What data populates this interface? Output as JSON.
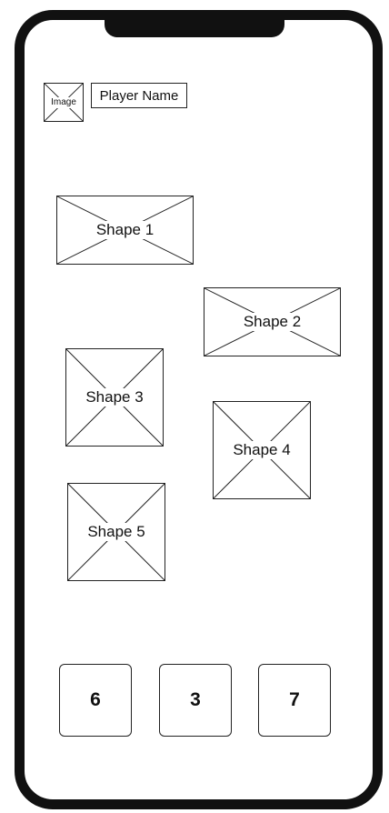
{
  "player": {
    "avatar_label": "Image",
    "name": "Player Name"
  },
  "shapes": [
    {
      "label": "Shape 1"
    },
    {
      "label": "Shape 2"
    },
    {
      "label": "Shape 3"
    },
    {
      "label": "Shape 4"
    },
    {
      "label": "Shape 5"
    }
  ],
  "answers": [
    {
      "label": "6"
    },
    {
      "label": "3"
    },
    {
      "label": "7"
    }
  ]
}
